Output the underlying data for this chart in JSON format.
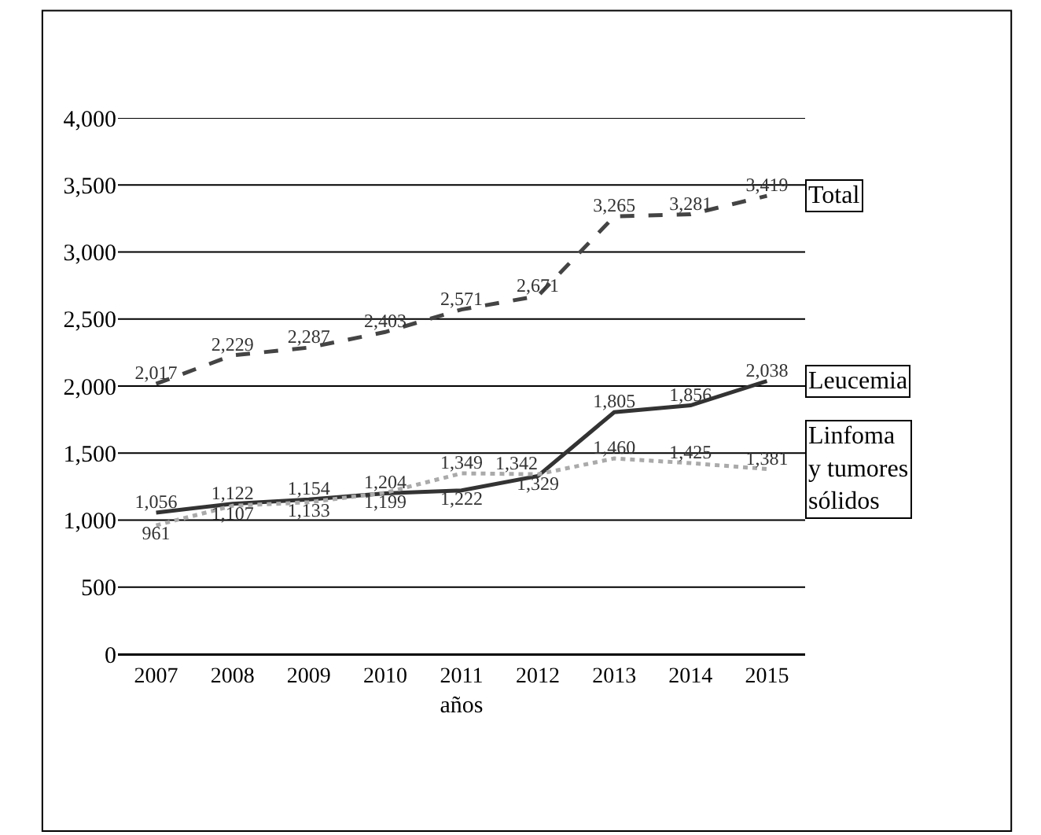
{
  "chart_data": {
    "type": "line",
    "xlabel": "años",
    "categories": [
      "2007",
      "2008",
      "2009",
      "2010",
      "2011",
      "2012",
      "2013",
      "2014",
      "2015"
    ],
    "series": [
      {
        "name": "Total",
        "color": "#444444",
        "line_style": "dashed",
        "values": [
          2017,
          2229,
          2287,
          2403,
          2571,
          2671,
          3265,
          3281,
          3419
        ],
        "value_labels": [
          "2,017",
          "2,229",
          "2,287",
          "2,403",
          "2,571",
          "2,671",
          "3,265",
          "3,281",
          "3,419"
        ]
      },
      {
        "name": "Leucemia",
        "color": "#333333",
        "line_style": "solid",
        "values": [
          1056,
          1122,
          1154,
          1199,
          1222,
          1329,
          1805,
          1856,
          2038
        ],
        "value_labels": [
          "1,056",
          "1,122",
          "1,154",
          "1,199",
          "1,222",
          "1,329",
          "1,805",
          "1,856",
          "2,038"
        ]
      },
      {
        "name": "Linfoma\ny tumores\nsólidos",
        "color": "#aaaaaa",
        "line_style": "dotted",
        "values": [
          961,
          1107,
          1133,
          1204,
          1349,
          1342,
          1460,
          1425,
          1381
        ],
        "value_labels": [
          "961",
          "1,107",
          "1,133",
          "1,204",
          "1,349",
          "1,342",
          "1,460",
          "1,425",
          "1,381"
        ]
      }
    ],
    "ylim": [
      0,
      4000
    ],
    "yticks": [
      {
        "value": 0,
        "label": "0"
      },
      {
        "value": 500,
        "label": "500"
      },
      {
        "value": 1000,
        "label": "1,000"
      },
      {
        "value": 1500,
        "label": "1,500"
      },
      {
        "value": 2000,
        "label": "2,000"
      },
      {
        "value": 2500,
        "label": "2,500"
      },
      {
        "value": 3000,
        "label": "3,000"
      },
      {
        "value": 3500,
        "label": "3,500"
      },
      {
        "value": 4000,
        "label": "4,000"
      }
    ],
    "grid": "y",
    "legend": false
  }
}
